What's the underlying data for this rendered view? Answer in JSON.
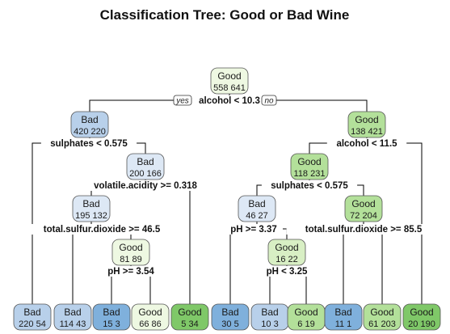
{
  "title": "Classification Tree: Good or Bad Wine",
  "colors": {
    "good_light": "#eef8e2",
    "good_pale": "#d8efc4",
    "good_mid": "#b3e09a",
    "good_dark": "#7fc868",
    "bad_light": "#dde8f5",
    "bad_mid": "#b8d0ea",
    "bad_dark": "#7fb0dc"
  },
  "branch_labels": {
    "yes": "yes",
    "no": "no"
  },
  "splits": [
    "alcohol < 10.3",
    "sulphates < 0.575",
    "alcohol < 11.5",
    "volatile.acidity >= 0.318",
    "sulphates < 0.575",
    "total.sulfur.dioxide >= 46.5",
    "pH >= 3.37",
    "total.sulfur.dioxide >= 85.5",
    "pH >= 3.54",
    "pH < 3.25"
  ],
  "nodes": [
    {
      "class": "Good",
      "counts": "558  641",
      "fill": "good_light"
    },
    {
      "class": "Bad",
      "counts": "420  220",
      "fill": "bad_mid"
    },
    {
      "class": "Good",
      "counts": "138  421",
      "fill": "good_mid"
    },
    {
      "class": "Bad",
      "counts": "200  166",
      "fill": "bad_light"
    },
    {
      "class": "Good",
      "counts": "118  231",
      "fill": "good_mid"
    },
    {
      "class": "Bad",
      "counts": "195  132",
      "fill": "bad_light"
    },
    {
      "class": "Bad",
      "counts": "46  27",
      "fill": "bad_light"
    },
    {
      "class": "Good",
      "counts": "72  204",
      "fill": "good_mid"
    },
    {
      "class": "Good",
      "counts": "81  89",
      "fill": "good_light"
    },
    {
      "class": "Good",
      "counts": "16  22",
      "fill": "good_pale"
    },
    {
      "class": "Bad",
      "counts": "220  54",
      "fill": "bad_mid"
    },
    {
      "class": "Bad",
      "counts": "114  43",
      "fill": "bad_mid"
    },
    {
      "class": "Bad",
      "counts": "15  3",
      "fill": "bad_dark"
    },
    {
      "class": "Good",
      "counts": "66  86",
      "fill": "good_light"
    },
    {
      "class": "Good",
      "counts": "5  34",
      "fill": "good_dark"
    },
    {
      "class": "Bad",
      "counts": "30  5",
      "fill": "bad_dark"
    },
    {
      "class": "Bad",
      "counts": "10  3",
      "fill": "bad_mid"
    },
    {
      "class": "Good",
      "counts": "6  19",
      "fill": "good_mid"
    },
    {
      "class": "Bad",
      "counts": "11  1",
      "fill": "bad_dark"
    },
    {
      "class": "Good",
      "counts": "61  203",
      "fill": "good_mid"
    },
    {
      "class": "Good",
      "counts": "20  190",
      "fill": "good_dark"
    }
  ]
}
